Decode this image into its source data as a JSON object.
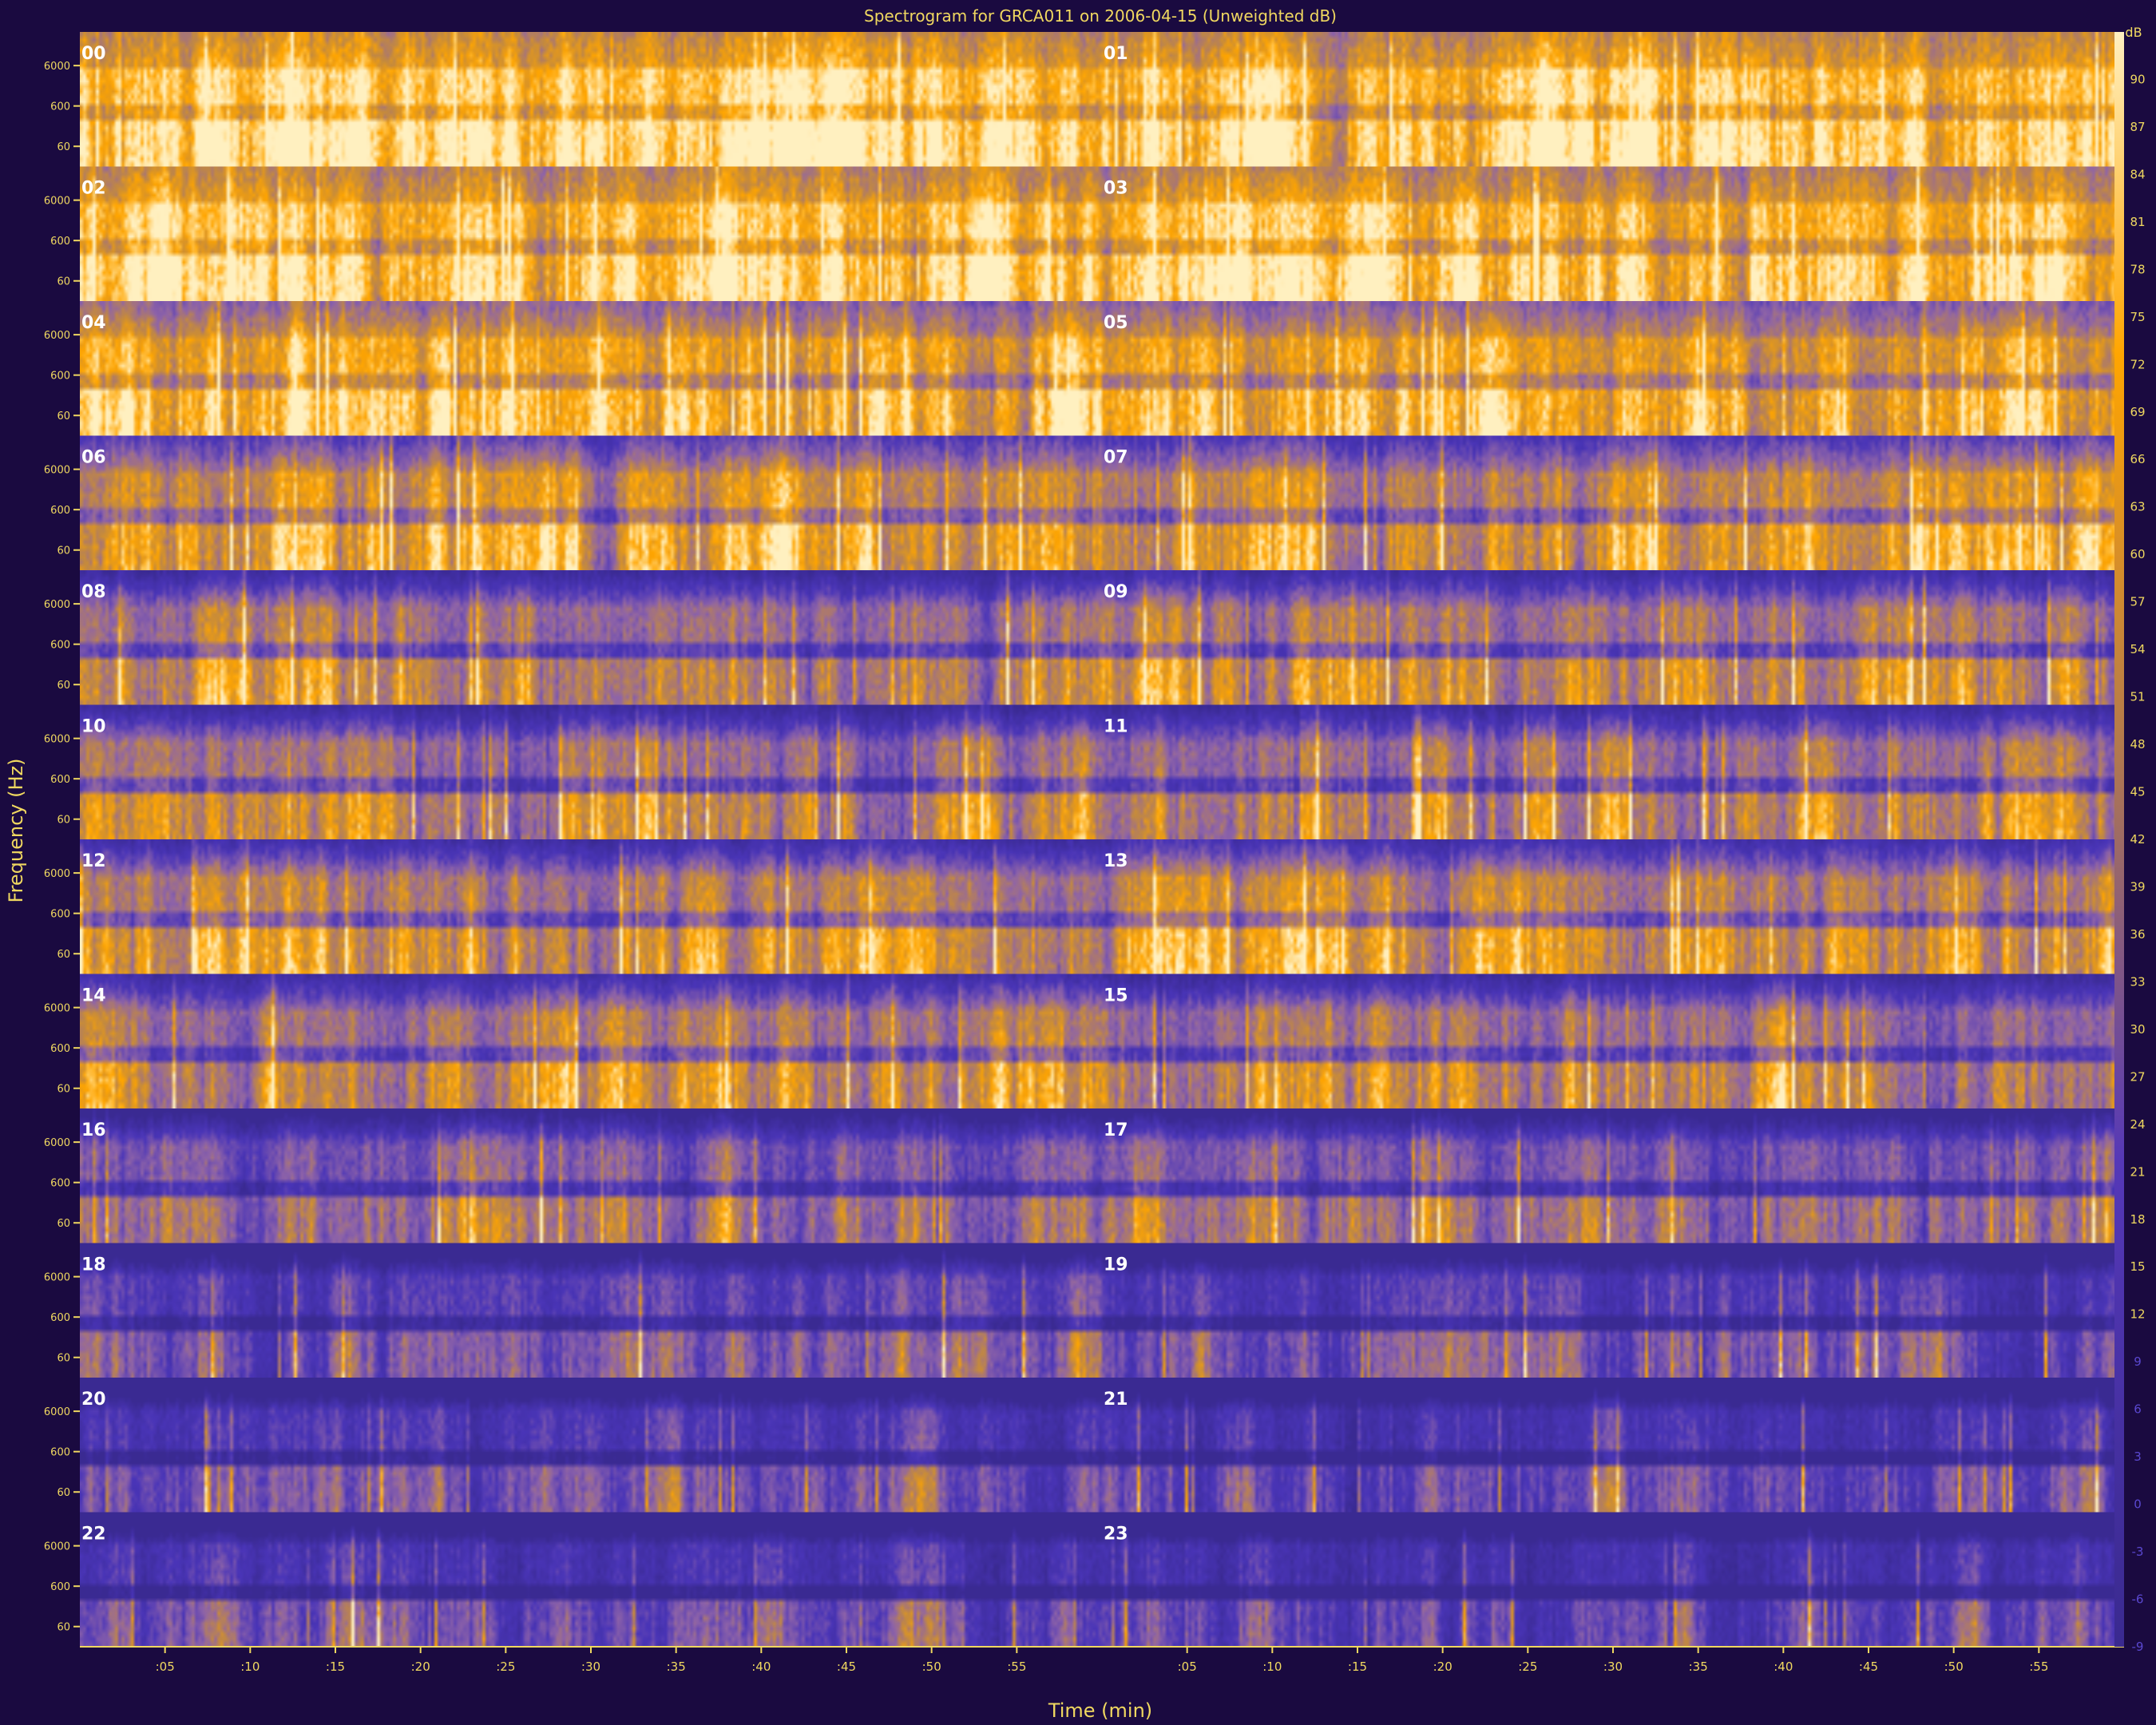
{
  "chart_data": {
    "type": "heatmap",
    "title": "Spectrogram for GRCA011 on 2006-04-15 (Unweighted dB)",
    "xlabel": "Time (min)",
    "ylabel": "Frequency (Hz)",
    "x_ticks": [
      ":05",
      ":10",
      ":15",
      ":20",
      ":25",
      ":30",
      ":35",
      ":40",
      ":45",
      ":50",
      ":55"
    ],
    "y_ticks": [
      "6000",
      "600",
      "60"
    ],
    "colorbar_unit": "dB",
    "colorbar_ticks": [
      "90",
      "87",
      "84",
      "81",
      "78",
      "75",
      "72",
      "69",
      "66",
      "63",
      "60",
      "57",
      "54",
      "51",
      "48",
      "45",
      "42",
      "39",
      "36",
      "33",
      "30",
      "27",
      "24",
      "21",
      "18",
      "15",
      "12",
      "9",
      "6",
      "3",
      "0",
      "-3",
      "-6",
      "-9"
    ],
    "colorbar_range": [
      -9,
      93
    ],
    "hours": [
      "00",
      "01",
      "02",
      "03",
      "04",
      "05",
      "06",
      "07",
      "08",
      "09",
      "10",
      "11",
      "12",
      "13",
      "14",
      "15",
      "16",
      "17",
      "18",
      "19",
      "20",
      "21",
      "22",
      "23"
    ],
    "hour_intensity": [
      0.93,
      0.93,
      0.92,
      0.91,
      0.86,
      0.85,
      0.78,
      0.77,
      0.68,
      0.69,
      0.66,
      0.68,
      0.7,
      0.72,
      0.7,
      0.68,
      0.6,
      0.58,
      0.5,
      0.46,
      0.44,
      0.42,
      0.4,
      0.4
    ],
    "colors": {
      "background": "#1a0a40",
      "low": "#4a35b8",
      "mid": "#c48a3e",
      "high": "#ffa500",
      "peak": "#fff0c0",
      "text": "#f0d860",
      "panel_label": "#ffffff"
    }
  }
}
